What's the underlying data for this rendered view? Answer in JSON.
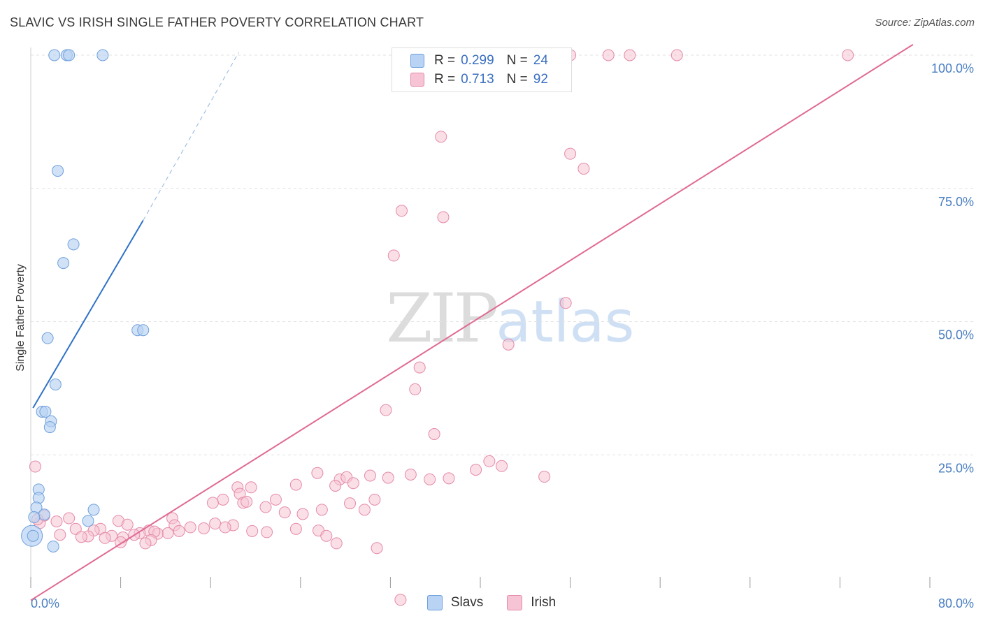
{
  "title": "SLAVIC VS IRISH SINGLE FATHER POVERTY CORRELATION CHART",
  "source": "Source: ZipAtlas.com",
  "watermark": {
    "zip": "ZIP",
    "atlas": "atlas"
  },
  "colors": {
    "slavs_fill": "#b8d3f3",
    "slavs_stroke": "#6fa0dc",
    "slavs_line": "#2f72c7",
    "irish_fill": "#f6c4d4",
    "irish_stroke": "#e58aa8",
    "irish_line": "#e06a92",
    "tick_text": "#4a7fc1",
    "grid": "#e2e2e2"
  },
  "legend": {
    "slavs": {
      "r_label": "R =",
      "r_value": "0.299",
      "n_label": "N =",
      "n_value": "24"
    },
    "irish": {
      "r_label": "R =",
      "r_value": "0.713",
      "n_label": "N =",
      "n_value": "92"
    }
  },
  "chart_data": {
    "type": "scatter",
    "title": "SLAVIC VS IRISH SINGLE FATHER POVERTY CORRELATION CHART",
    "xlabel": "",
    "ylabel": "Single Father Poverty",
    "xlim": [
      0,
      80
    ],
    "ylim": [
      0,
      105
    ],
    "x_tick_labels": [
      {
        "value": 0,
        "label": "0.0%"
      },
      {
        "value": 80,
        "label": "80.0%"
      }
    ],
    "y_tick_labels": [
      {
        "value": 25,
        "label": "25.0%"
      },
      {
        "value": 50,
        "label": "50.0%"
      },
      {
        "value": 75,
        "label": "75.0%"
      },
      {
        "value": 100,
        "label": "100.0%"
      }
    ],
    "grid": true,
    "legend_position": "top-center",
    "series": [
      {
        "name": "Slavs",
        "trend": {
          "x0": 0.2,
          "y0": 33.8,
          "x1": 10.0,
          "y1": 69.0,
          "dash_to_x": 18.5,
          "dash_to_y": 100.5
        },
        "points": [
          [
            2.1,
            100
          ],
          [
            3.2,
            100
          ],
          [
            3.4,
            100
          ],
          [
            6.4,
            100
          ],
          [
            2.4,
            78.3
          ],
          [
            3.8,
            64.5
          ],
          [
            2.9,
            61.0
          ],
          [
            9.5,
            48.4
          ],
          [
            10.0,
            48.4
          ],
          [
            1.5,
            46.9
          ],
          [
            2.2,
            38.2
          ],
          [
            1.0,
            33.1
          ],
          [
            1.3,
            33.1
          ],
          [
            1.8,
            31.3
          ],
          [
            1.7,
            30.2
          ],
          [
            0.7,
            18.5
          ],
          [
            0.7,
            16.9
          ],
          [
            0.5,
            15.1
          ],
          [
            1.2,
            13.8
          ],
          [
            0.3,
            13.3
          ],
          [
            5.6,
            14.7
          ],
          [
            5.1,
            12.6
          ],
          [
            0.2,
            9.8
          ],
          [
            2.0,
            7.8
          ]
        ],
        "big_point": [
          0.1,
          9.8
        ]
      },
      {
        "name": "Irish",
        "trend": {
          "x0": 0.0,
          "y0": -2.3,
          "x1": 78.5,
          "y1": 102.0
        },
        "points": [
          [
            38.0,
            100
          ],
          [
            40.5,
            100
          ],
          [
            44.7,
            100
          ],
          [
            48.0,
            100
          ],
          [
            51.4,
            100
          ],
          [
            53.3,
            100
          ],
          [
            57.5,
            100
          ],
          [
            72.7,
            100
          ],
          [
            36.5,
            84.7
          ],
          [
            48.0,
            81.5
          ],
          [
            49.2,
            78.7
          ],
          [
            33.0,
            70.8
          ],
          [
            36.7,
            69.6
          ],
          [
            32.3,
            62.4
          ],
          [
            47.6,
            53.5
          ],
          [
            42.5,
            45.7
          ],
          [
            34.6,
            41.4
          ],
          [
            34.2,
            37.3
          ],
          [
            31.6,
            33.4
          ],
          [
            35.9,
            28.9
          ],
          [
            0.4,
            22.8
          ],
          [
            40.8,
            23.8
          ],
          [
            39.6,
            22.2
          ],
          [
            41.9,
            22.9
          ],
          [
            33.8,
            21.3
          ],
          [
            30.2,
            21.1
          ],
          [
            25.5,
            21.6
          ],
          [
            31.8,
            20.7
          ],
          [
            27.5,
            20.4
          ],
          [
            28.1,
            20.8
          ],
          [
            37.2,
            20.6
          ],
          [
            45.7,
            20.9
          ],
          [
            35.5,
            20.4
          ],
          [
            28.7,
            19.7
          ],
          [
            23.6,
            19.4
          ],
          [
            18.4,
            18.9
          ],
          [
            19.6,
            18.9
          ],
          [
            27.1,
            19.2
          ],
          [
            18.6,
            17.7
          ],
          [
            21.8,
            16.6
          ],
          [
            17.1,
            16.6
          ],
          [
            16.2,
            16.0
          ],
          [
            18.9,
            16.0
          ],
          [
            19.2,
            16.2
          ],
          [
            20.9,
            15.2
          ],
          [
            28.4,
            15.9
          ],
          [
            30.6,
            16.6
          ],
          [
            29.7,
            14.7
          ],
          [
            22.6,
            14.2
          ],
          [
            25.9,
            14.7
          ],
          [
            24.2,
            13.9
          ],
          [
            1.2,
            13.6
          ],
          [
            3.4,
            13.1
          ],
          [
            7.8,
            12.6
          ],
          [
            12.6,
            13.1
          ],
          [
            2.3,
            12.5
          ],
          [
            0.8,
            12.2
          ],
          [
            0.6,
            12.9
          ],
          [
            12.8,
            11.8
          ],
          [
            8.6,
            11.9
          ],
          [
            16.4,
            12.1
          ],
          [
            18.0,
            11.8
          ],
          [
            14.2,
            11.4
          ],
          [
            15.4,
            11.2
          ],
          [
            6.2,
            11.1
          ],
          [
            17.3,
            11.4
          ],
          [
            4.0,
            11.1
          ],
          [
            5.6,
            10.8
          ],
          [
            10.5,
            10.8
          ],
          [
            13.2,
            10.7
          ],
          [
            19.7,
            10.7
          ],
          [
            21.0,
            10.5
          ],
          [
            23.6,
            11.1
          ],
          [
            25.6,
            10.8
          ],
          [
            9.7,
            10.3
          ],
          [
            11.3,
            10.2
          ],
          [
            12.2,
            10.3
          ],
          [
            11.0,
            10.6
          ],
          [
            2.6,
            10.0
          ],
          [
            5.1,
            9.7
          ],
          [
            7.2,
            9.8
          ],
          [
            9.2,
            10.0
          ],
          [
            4.5,
            9.6
          ],
          [
            6.6,
            9.4
          ],
          [
            8.2,
            9.5
          ],
          [
            10.7,
            9.0
          ],
          [
            8.0,
            8.6
          ],
          [
            10.2,
            8.4
          ],
          [
            26.3,
            9.8
          ],
          [
            27.2,
            8.4
          ],
          [
            30.8,
            7.5
          ],
          [
            32.9,
            -2.2
          ]
        ]
      }
    ]
  }
}
